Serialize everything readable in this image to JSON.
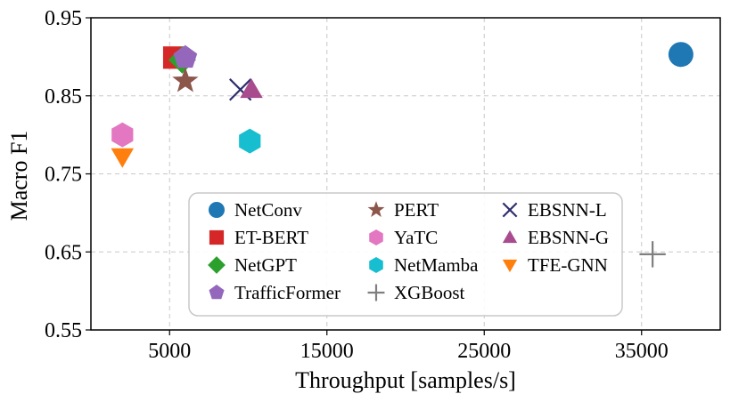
{
  "chart_data": {
    "type": "scatter",
    "title": "",
    "xlabel": "Throughput [samples/s]",
    "ylabel": "Macro F1",
    "xlim": [
      0,
      40000
    ],
    "ylim": [
      0.55,
      0.95
    ],
    "xticks": [
      5000,
      15000,
      25000,
      35000
    ],
    "yticks": [
      0.55,
      0.65,
      0.75,
      0.85,
      0.95
    ],
    "xtick_labels": [
      "5000",
      "15000",
      "25000",
      "35000"
    ],
    "ytick_labels": [
      "0.55",
      "0.65",
      "0.75",
      "0.85",
      "0.95"
    ],
    "grid": true,
    "legend_position": "lower-center",
    "series": [
      {
        "name": "NetConv",
        "x": 37500,
        "y": 0.903,
        "marker": "circle",
        "color": "#1f77b4"
      },
      {
        "name": "ET-BERT",
        "x": 5300,
        "y": 0.899,
        "marker": "square",
        "color": "#d62728"
      },
      {
        "name": "NetGPT",
        "x": 5800,
        "y": 0.896,
        "marker": "diamond",
        "color": "#2ca02c"
      },
      {
        "name": "TrafficFormer",
        "x": 6000,
        "y": 0.899,
        "marker": "pentagon",
        "color": "#9467bd"
      },
      {
        "name": "PERT",
        "x": 6000,
        "y": 0.869,
        "marker": "star",
        "color": "#8c564b"
      },
      {
        "name": "YaTC",
        "x": 2000,
        "y": 0.8,
        "marker": "hexagon",
        "color": "#e377c2"
      },
      {
        "name": "NetMamba",
        "x": 10100,
        "y": 0.792,
        "marker": "hexagon",
        "color": "#17becf"
      },
      {
        "name": "XGBoost",
        "x": 35700,
        "y": 0.647,
        "marker": "plus",
        "color": "#7f7f7f"
      },
      {
        "name": "EBSNN-L",
        "x": 9500,
        "y": 0.858,
        "marker": "x",
        "color": "#2e2e6e"
      },
      {
        "name": "EBSNN-G",
        "x": 10200,
        "y": 0.858,
        "marker": "triangle-up",
        "color": "#a94c8e"
      },
      {
        "name": "TFE-GNN",
        "x": 2000,
        "y": 0.772,
        "marker": "triangle-down",
        "color": "#ff7f0e"
      }
    ],
    "legend_columns": [
      [
        "NetConv",
        "ET-BERT",
        "NetGPT",
        "TrafficFormer"
      ],
      [
        "PERT",
        "YaTC",
        "NetMamba",
        "XGBoost"
      ],
      [
        "EBSNN-L",
        "EBSNN-G",
        "TFE-GNN"
      ]
    ]
  }
}
